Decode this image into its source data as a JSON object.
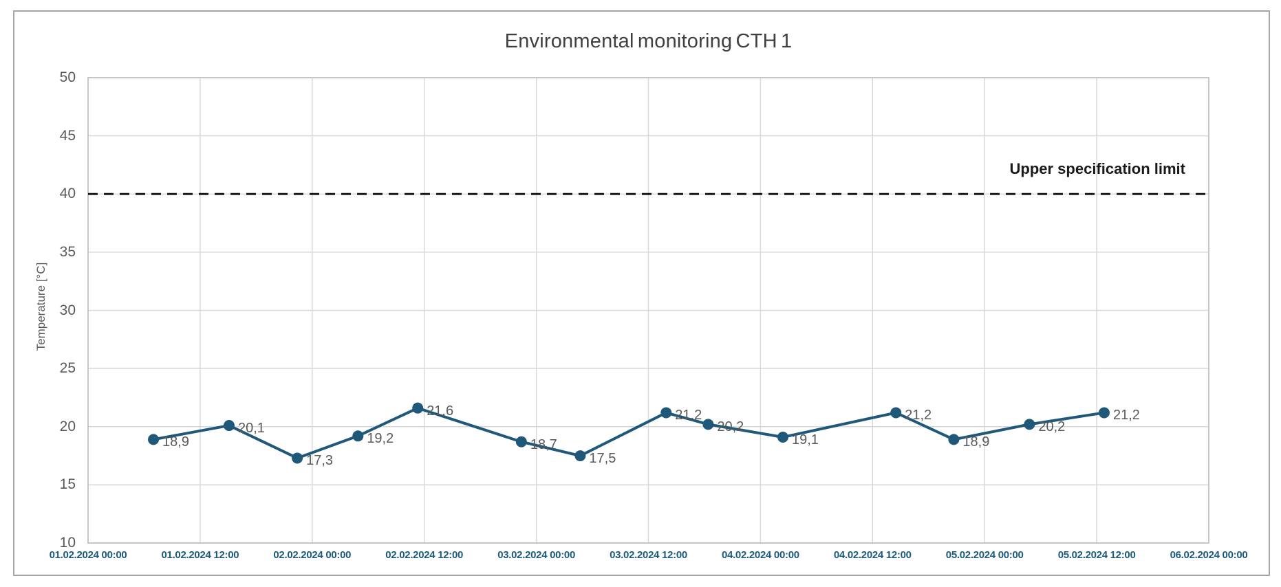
{
  "window": {
    "background_color": "#ffffff",
    "frame_border_color": "#a6a6a6"
  },
  "colors": {
    "series_line": "#20587a",
    "series_marker": "#20587a",
    "title_text": "#404040",
    "y_tick_text": "#595959",
    "x_tick_text": "#1b5a7e",
    "data_label_text": "#595959",
    "gridline": "#d9d9d9",
    "plot_border": "#bfbfbf",
    "reference_line": "#1a1a1a"
  },
  "chart_data": {
    "type": "line",
    "title": "Environmental monitoring CTH 1",
    "xlabel": "",
    "ylabel": "Temperature [°C]",
    "ylim": [
      10,
      50
    ],
    "y_ticks": [
      10,
      15,
      20,
      25,
      30,
      35,
      40,
      45,
      50
    ],
    "x_axis_hours_range": [
      0,
      120
    ],
    "x_tick_interval_hours": 12,
    "x_tick_labels": [
      "01.02.2024 00:00",
      "01.02.2024 12:00",
      "02.02.2024 00:00",
      "02.02.2024 12:00",
      "03.02.2024 00:00",
      "03.02.2024 12:00",
      "04.02.2024 00:00",
      "04.02.2024 12:00",
      "05.02.2024 00:00",
      "05.02.2024 12:00",
      "06.02.2024 00:00"
    ],
    "grid": true,
    "legend": "none",
    "decimal_separator": ",",
    "series": [
      {
        "points": [
          {
            "hours": 7.0,
            "value": 18.9,
            "label": "18,9"
          },
          {
            "hours": 15.1,
            "value": 20.1,
            "label": "20,1"
          },
          {
            "hours": 22.4,
            "value": 17.3,
            "label": "17,3"
          },
          {
            "hours": 28.9,
            "value": 19.2,
            "label": "19,2"
          },
          {
            "hours": 35.3,
            "value": 21.6,
            "label": "21,6"
          },
          {
            "hours": 46.4,
            "value": 18.7,
            "label": "18,7"
          },
          {
            "hours": 52.7,
            "value": 17.5,
            "label": "17,5"
          },
          {
            "hours": 61.9,
            "value": 21.2,
            "label": "21,2"
          },
          {
            "hours": 66.4,
            "value": 20.2,
            "label": "20,2"
          },
          {
            "hours": 74.4,
            "value": 19.1,
            "label": "19,1"
          },
          {
            "hours": 86.5,
            "value": 21.2,
            "label": "21,2"
          },
          {
            "hours": 92.7,
            "value": 18.9,
            "label": "18,9"
          },
          {
            "hours": 100.8,
            "value": 20.2,
            "label": "20,2"
          },
          {
            "hours": 108.8,
            "value": 21.2,
            "label": "21,2"
          }
        ]
      }
    ],
    "reference_line": {
      "label": "Upper specification limit",
      "value": 40,
      "style": "dashed"
    }
  }
}
